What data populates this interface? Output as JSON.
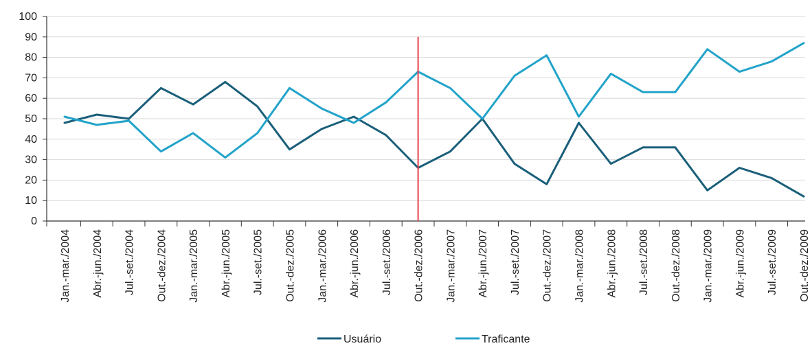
{
  "chart_data": {
    "type": "line",
    "title": "",
    "xlabel": "",
    "ylabel": "",
    "ylim": [
      0,
      100
    ],
    "yticks": [
      0,
      10,
      20,
      30,
      40,
      50,
      60,
      70,
      80,
      90,
      100
    ],
    "grid": "horizontal",
    "legend_position": "bottom-center",
    "marker_category": "Out.-dez./2006",
    "marker_color": "#e8414b",
    "categories": [
      "Jan.-mar./2004",
      "Abr.-jun./2004",
      "Jul.-set./2004",
      "Out.-dez./2004",
      "Jan.-mar./2005",
      "Abr.-jun./2005",
      "Jul.-set./2005",
      "Out.-dez./2005",
      "Jan.-mar./2006",
      "Abr.-jun./2006",
      "Jul.-set./2006",
      "Out.-dez./2006",
      "Jan.-mar./2007",
      "Abr.-jun./2007",
      "Jul.-set./2007",
      "Out.-dez./2007",
      "Jan.-mar./2008",
      "Abr.-jun./2008",
      "Jul.-set./2008",
      "Out.-dez./2008",
      "Jan.-mar./2009",
      "Abr.-jun./2009",
      "Jul.-set./2009",
      "Out.-dez./2009"
    ],
    "series": [
      {
        "name": "Usuário",
        "color": "#1a5f7a",
        "values": [
          48,
          52,
          50,
          65,
          57,
          68,
          56,
          35,
          45,
          51,
          42,
          26,
          34,
          50,
          28,
          18,
          48,
          28,
          36,
          36,
          15,
          26,
          21,
          12
        ]
      },
      {
        "name": "Traficante",
        "color": "#22a3c9",
        "values": [
          51,
          47,
          49,
          34,
          43,
          31,
          43,
          65,
          55,
          48,
          58,
          73,
          65,
          50,
          71,
          81,
          51,
          72,
          63,
          63,
          84,
          73,
          78,
          87
        ]
      }
    ]
  }
}
